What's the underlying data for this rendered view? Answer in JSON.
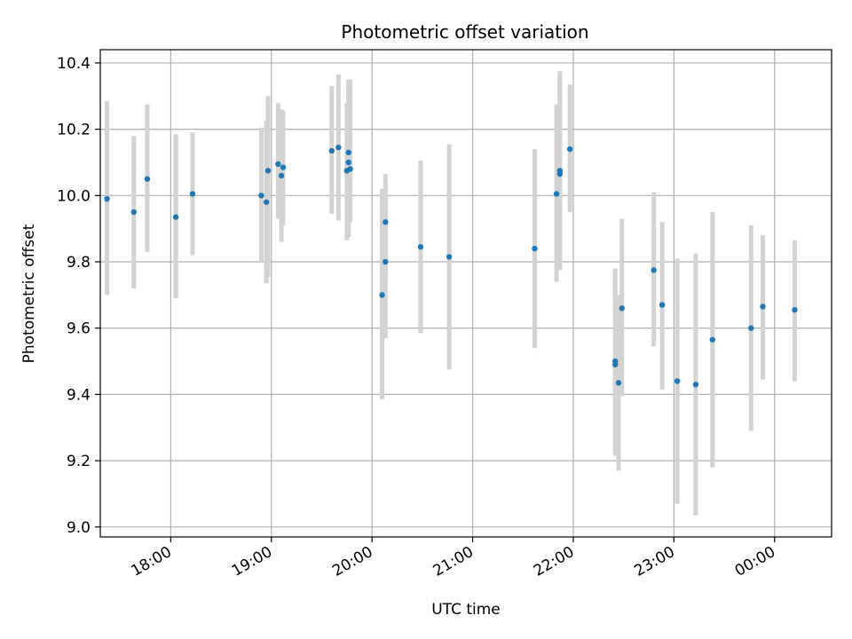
{
  "chart_data": {
    "type": "scatter",
    "title": "Photometric offset variation",
    "xlabel": "UTC time",
    "ylabel": "Photometric offset",
    "ylim": [
      8.97,
      10.44
    ],
    "xlim": [
      "17:18",
      "00:34"
    ],
    "grid": true,
    "x_tick_labels": [
      "18:00",
      "19:00",
      "20:00",
      "21:00",
      "22:00",
      "23:00",
      "00:00"
    ],
    "x_ticks": [
      "18:00",
      "19:00",
      "20:00",
      "21:00",
      "22:00",
      "23:00",
      "00:00"
    ],
    "y_ticks": [
      9.0,
      9.2,
      9.4,
      9.6,
      9.8,
      10.0,
      10.2,
      10.4
    ],
    "y_tick_labels": [
      "9.0",
      "9.2",
      "9.4",
      "9.6",
      "9.8",
      "10.0",
      "10.2",
      "10.4"
    ],
    "errorbar_color": "#d3d3d3",
    "marker_color": "#1f77b4",
    "points": [
      {
        "x": "17:22",
        "y": 9.99,
        "lo": 9.7,
        "hi": 10.285
      },
      {
        "x": "17:38",
        "y": 9.95,
        "lo": 9.72,
        "hi": 10.18
      },
      {
        "x": "17:46",
        "y": 10.05,
        "lo": 9.83,
        "hi": 10.275
      },
      {
        "x": "18:03",
        "y": 9.935,
        "lo": 9.69,
        "hi": 10.185
      },
      {
        "x": "18:13",
        "y": 10.005,
        "lo": 9.82,
        "hi": 10.19
      },
      {
        "x": "18:54",
        "y": 10.0,
        "lo": 9.8,
        "hi": 10.205
      },
      {
        "x": "18:57",
        "y": 9.98,
        "lo": 9.735,
        "hi": 10.225
      },
      {
        "x": "18:58",
        "y": 10.075,
        "lo": 9.755,
        "hi": 10.3
      },
      {
        "x": "19:04",
        "y": 10.095,
        "lo": 9.93,
        "hi": 10.28
      },
      {
        "x": "19:06",
        "y": 10.06,
        "lo": 9.86,
        "hi": 10.26
      },
      {
        "x": "19:07",
        "y": 10.085,
        "lo": 9.91,
        "hi": 10.255
      },
      {
        "x": "19:36",
        "y": 10.135,
        "lo": 9.945,
        "hi": 10.33
      },
      {
        "x": "19:40",
        "y": 10.145,
        "lo": 9.925,
        "hi": 10.365
      },
      {
        "x": "19:45",
        "y": 10.075,
        "lo": 9.865,
        "hi": 10.28
      },
      {
        "x": "19:46",
        "y": 10.13,
        "lo": 9.91,
        "hi": 10.35
      },
      {
        "x": "19:46",
        "y": 10.1,
        "lo": 9.875,
        "hi": 10.345
      },
      {
        "x": "19:47",
        "y": 10.08,
        "lo": 9.92,
        "hi": 10.35
      },
      {
        "x": "20:06",
        "y": 9.7,
        "lo": 9.385,
        "hi": 10.02
      },
      {
        "x": "20:08",
        "y": 9.92,
        "lo": 9.745,
        "hi": 10.065
      },
      {
        "x": "20:08",
        "y": 9.8,
        "lo": 9.57,
        "hi": 10.03
      },
      {
        "x": "20:29",
        "y": 9.845,
        "lo": 9.585,
        "hi": 10.105
      },
      {
        "x": "20:46",
        "y": 9.815,
        "lo": 9.475,
        "hi": 10.155
      },
      {
        "x": "21:37",
        "y": 9.84,
        "lo": 9.54,
        "hi": 10.14
      },
      {
        "x": "21:50",
        "y": 10.005,
        "lo": 9.74,
        "hi": 10.275
      },
      {
        "x": "21:52",
        "y": 10.075,
        "lo": 9.79,
        "hi": 10.375
      },
      {
        "x": "21:52",
        "y": 10.065,
        "lo": 9.775,
        "hi": 10.36
      },
      {
        "x": "21:58",
        "y": 10.14,
        "lo": 9.95,
        "hi": 10.335
      },
      {
        "x": "22:25",
        "y": 9.5,
        "lo": 9.215,
        "hi": 9.78
      },
      {
        "x": "22:25",
        "y": 9.49,
        "lo": 9.265,
        "hi": 9.75
      },
      {
        "x": "22:27",
        "y": 9.435,
        "lo": 9.17,
        "hi": 9.7
      },
      {
        "x": "22:29",
        "y": 9.66,
        "lo": 9.395,
        "hi": 9.93
      },
      {
        "x": "22:48",
        "y": 9.775,
        "lo": 9.545,
        "hi": 10.01
      },
      {
        "x": "22:53",
        "y": 9.67,
        "lo": 9.415,
        "hi": 9.92
      },
      {
        "x": "23:02",
        "y": 9.44,
        "lo": 9.07,
        "hi": 9.81
      },
      {
        "x": "23:13",
        "y": 9.43,
        "lo": 9.035,
        "hi": 9.825
      },
      {
        "x": "23:23",
        "y": 9.565,
        "lo": 9.18,
        "hi": 9.95
      },
      {
        "x": "23:46",
        "y": 9.6,
        "lo": 9.29,
        "hi": 9.91
      },
      {
        "x": "23:53",
        "y": 9.665,
        "lo": 9.445,
        "hi": 9.88
      },
      {
        "x": "00:12",
        "y": 9.655,
        "lo": 9.44,
        "hi": 9.865
      }
    ]
  }
}
